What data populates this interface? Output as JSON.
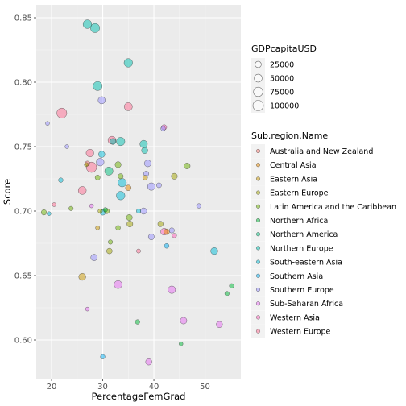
{
  "chart_data": {
    "type": "scatter",
    "xlabel": "PercentageFemGrad",
    "ylabel": "Score",
    "xlim": [
      17,
      57
    ],
    "ylim": [
      0.57,
      0.86
    ],
    "x_ticks": [
      20,
      30,
      40,
      50
    ],
    "y_ticks": [
      0.6,
      0.65,
      0.7,
      0.75,
      0.8,
      0.85
    ],
    "y_tick_labels": [
      "0.60",
      "0.65",
      "0.70",
      "0.75",
      "0.80",
      "0.85"
    ],
    "grid": true,
    "size_legend": {
      "title": "GDPcapitaUSD",
      "values": [
        25000,
        50000,
        75000,
        100000
      ],
      "labels": [
        "25000",
        "50000",
        "75000",
        "100000"
      ]
    },
    "color_legend": {
      "title": "Sub.region.Name",
      "placement": "right",
      "items": [
        {
          "label": "Australia and New Zealand",
          "color": "#F8766D"
        },
        {
          "label": "Central Asia",
          "color": "#E58700"
        },
        {
          "label": "Eastern Asia",
          "color": "#C99800"
        },
        {
          "label": "Eastern Europe",
          "color": "#A3A500"
        },
        {
          "label": "Latin America and the Caribbean",
          "color": "#6BB100"
        },
        {
          "label": "Northern Africa",
          "color": "#00BA38"
        },
        {
          "label": "Northern America",
          "color": "#00BF7D"
        },
        {
          "label": "Northern Europe",
          "color": "#00C0AF"
        },
        {
          "label": "South-eastern Asia",
          "color": "#00BCD8"
        },
        {
          "label": "Southern Asia",
          "color": "#00B0F6"
        },
        {
          "label": "Southern Europe",
          "color": "#9590FF"
        },
        {
          "label": "Sub-Saharan Africa",
          "color": "#E76BF3"
        },
        {
          "label": "Western Asia",
          "color": "#FF62BC"
        },
        {
          "label": "Western Europe",
          "color": "#FF6C91"
        }
      ]
    },
    "points": [
      {
        "x": 27.0,
        "y": 0.845,
        "gdp": 62000,
        "color": "#00C0AF"
      },
      {
        "x": 28.5,
        "y": 0.842,
        "gdp": 72000,
        "color": "#00C0AF"
      },
      {
        "x": 35.0,
        "y": 0.815,
        "gdp": 60000,
        "color": "#00C0AF"
      },
      {
        "x": 29.0,
        "y": 0.797,
        "gdp": 70000,
        "color": "#00C0AF"
      },
      {
        "x": 29.8,
        "y": 0.786,
        "gdp": 38000,
        "color": "#9590FF"
      },
      {
        "x": 35.0,
        "y": 0.781,
        "gdp": 52000,
        "color": "#FF6C91"
      },
      {
        "x": 22.0,
        "y": 0.776,
        "gdp": 90000,
        "color": "#FF6C91"
      },
      {
        "x": 19.2,
        "y": 0.768,
        "gdp": 5000,
        "color": "#9590FF"
      },
      {
        "x": 42.0,
        "y": 0.765,
        "gdp": 14000,
        "color": "#FF62BC"
      },
      {
        "x": 41.8,
        "y": 0.764,
        "gdp": 9000,
        "color": "#9590FF"
      },
      {
        "x": 31.8,
        "y": 0.755,
        "gdp": 48000,
        "color": "#FF6C91"
      },
      {
        "x": 32.0,
        "y": 0.754,
        "gdp": 22000,
        "color": "#00C0AF"
      },
      {
        "x": 33.5,
        "y": 0.754,
        "gdp": 58000,
        "color": "#00C0AF"
      },
      {
        "x": 38.0,
        "y": 0.752,
        "gdp": 42000,
        "color": "#00C0AF"
      },
      {
        "x": 23.0,
        "y": 0.75,
        "gdp": 5000,
        "color": "#9590FF"
      },
      {
        "x": 38.2,
        "y": 0.747,
        "gdp": 25000,
        "color": "#00C0AF"
      },
      {
        "x": 27.5,
        "y": 0.745,
        "gdp": 45000,
        "color": "#FF6C91"
      },
      {
        "x": 29.8,
        "y": 0.744,
        "gdp": 26000,
        "color": "#00BCD8"
      },
      {
        "x": 27.0,
        "y": 0.737,
        "gdp": 10000,
        "color": "#F8766D"
      },
      {
        "x": 27.8,
        "y": 0.734,
        "gdp": 98000,
        "color": "#FF6C91"
      },
      {
        "x": 26.8,
        "y": 0.736,
        "gdp": 6000,
        "color": "#A3A500"
      },
      {
        "x": 29.5,
        "y": 0.738,
        "gdp": 45000,
        "color": "#9590FF"
      },
      {
        "x": 33.0,
        "y": 0.736,
        "gdp": 22000,
        "color": "#6BB100"
      },
      {
        "x": 38.8,
        "y": 0.737,
        "gdp": 32000,
        "color": "#9590FF"
      },
      {
        "x": 46.5,
        "y": 0.735,
        "gdp": 22000,
        "color": "#6BB100"
      },
      {
        "x": 31.2,
        "y": 0.731,
        "gdp": 55000,
        "color": "#00BF7D"
      },
      {
        "x": 29.0,
        "y": 0.726,
        "gdp": 12000,
        "color": "#6BB100"
      },
      {
        "x": 33.5,
        "y": 0.727,
        "gdp": 14000,
        "color": "#6BB100"
      },
      {
        "x": 38.5,
        "y": 0.729,
        "gdp": 14000,
        "color": "#9590FF"
      },
      {
        "x": 38.3,
        "y": 0.726,
        "gdp": 10000,
        "color": "#C99800"
      },
      {
        "x": 44.0,
        "y": 0.727,
        "gdp": 22000,
        "color": "#A3A500"
      },
      {
        "x": 21.8,
        "y": 0.724,
        "gdp": 9000,
        "color": "#00BCD8"
      },
      {
        "x": 33.8,
        "y": 0.722,
        "gdp": 58000,
        "color": "#00BCD8"
      },
      {
        "x": 35.0,
        "y": 0.718,
        "gdp": 18000,
        "color": "#E58700"
      },
      {
        "x": 39.5,
        "y": 0.719,
        "gdp": 42000,
        "color": "#9590FF"
      },
      {
        "x": 41.0,
        "y": 0.72,
        "gdp": 12000,
        "color": "#9590FF"
      },
      {
        "x": 26.0,
        "y": 0.716,
        "gdp": 50000,
        "color": "#FF6C91"
      },
      {
        "x": 33.5,
        "y": 0.712,
        "gdp": 60000,
        "color": "#00BCD8"
      },
      {
        "x": 20.5,
        "y": 0.705,
        "gdp": 5000,
        "color": "#FF6C91"
      },
      {
        "x": 27.8,
        "y": 0.704,
        "gdp": 5000,
        "color": "#E76BF3"
      },
      {
        "x": 48.8,
        "y": 0.704,
        "gdp": 9000,
        "color": "#9590FF"
      },
      {
        "x": 23.8,
        "y": 0.702,
        "gdp": 8000,
        "color": "#6BB100"
      },
      {
        "x": 18.5,
        "y": 0.699,
        "gdp": 15000,
        "color": "#6BB100"
      },
      {
        "x": 19.5,
        "y": 0.698,
        "gdp": 5000,
        "color": "#00BCD8"
      },
      {
        "x": 29.5,
        "y": 0.7,
        "gdp": 8000,
        "color": "#A3A500"
      },
      {
        "x": 30.0,
        "y": 0.699,
        "gdp": 18000,
        "color": "#00BCD8"
      },
      {
        "x": 30.5,
        "y": 0.701,
        "gdp": 8000,
        "color": "#00BA38"
      },
      {
        "x": 30.8,
        "y": 0.7,
        "gdp": 14000,
        "color": "#6BB100"
      },
      {
        "x": 35.2,
        "y": 0.695,
        "gdp": 22000,
        "color": "#6BB100"
      },
      {
        "x": 37.0,
        "y": 0.7,
        "gdp": 8000,
        "color": "#00BCD8"
      },
      {
        "x": 38.0,
        "y": 0.7,
        "gdp": 25000,
        "color": "#9590FF"
      },
      {
        "x": 35.3,
        "y": 0.69,
        "gdp": 22000,
        "color": "#A3A500"
      },
      {
        "x": 41.3,
        "y": 0.69,
        "gdp": 16000,
        "color": "#A3A500"
      },
      {
        "x": 29.0,
        "y": 0.687,
        "gdp": 6000,
        "color": "#C99800"
      },
      {
        "x": 33.0,
        "y": 0.687,
        "gdp": 10000,
        "color": "#6BB100"
      },
      {
        "x": 42.0,
        "y": 0.684,
        "gdp": 32000,
        "color": "#FF62BC"
      },
      {
        "x": 42.5,
        "y": 0.684,
        "gdp": 18000,
        "color": "#E58700"
      },
      {
        "x": 43.5,
        "y": 0.685,
        "gdp": 14000,
        "color": "#9590FF"
      },
      {
        "x": 39.5,
        "y": 0.68,
        "gdp": 22000,
        "color": "#9590FF"
      },
      {
        "x": 44.0,
        "y": 0.681,
        "gdp": 8000,
        "color": "#FF62BC"
      },
      {
        "x": 31.5,
        "y": 0.676,
        "gdp": 8000,
        "color": "#6BB100"
      },
      {
        "x": 42.5,
        "y": 0.673,
        "gdp": 10000,
        "color": "#00B0F6"
      },
      {
        "x": 31.3,
        "y": 0.669,
        "gdp": 18000,
        "color": "#A3A500"
      },
      {
        "x": 37.0,
        "y": 0.669,
        "gdp": 6000,
        "color": "#FF6C91"
      },
      {
        "x": 51.8,
        "y": 0.669,
        "gdp": 35000,
        "color": "#00BCD8"
      },
      {
        "x": 28.3,
        "y": 0.664,
        "gdp": 28000,
        "color": "#9590FF"
      },
      {
        "x": 26.0,
        "y": 0.649,
        "gdp": 35000,
        "color": "#C99800"
      },
      {
        "x": 33.0,
        "y": 0.643,
        "gdp": 50000,
        "color": "#E76BF3"
      },
      {
        "x": 43.5,
        "y": 0.639,
        "gdp": 42000,
        "color": "#E76BF3"
      },
      {
        "x": 55.2,
        "y": 0.642,
        "gdp": 9000,
        "color": "#00BA38"
      },
      {
        "x": 54.3,
        "y": 0.636,
        "gdp": 8000,
        "color": "#00BA38"
      },
      {
        "x": 27.0,
        "y": 0.624,
        "gdp": 5000,
        "color": "#E76BF3"
      },
      {
        "x": 36.8,
        "y": 0.614,
        "gdp": 9000,
        "color": "#00BA38"
      },
      {
        "x": 45.8,
        "y": 0.615,
        "gdp": 30000,
        "color": "#E76BF3"
      },
      {
        "x": 52.8,
        "y": 0.612,
        "gdp": 25000,
        "color": "#E76BF3"
      },
      {
        "x": 45.3,
        "y": 0.597,
        "gdp": 5000,
        "color": "#00BA38"
      },
      {
        "x": 30.0,
        "y": 0.587,
        "gdp": 9000,
        "color": "#00B0F6"
      },
      {
        "x": 39.0,
        "y": 0.583,
        "gdp": 25000,
        "color": "#E76BF3"
      }
    ]
  }
}
